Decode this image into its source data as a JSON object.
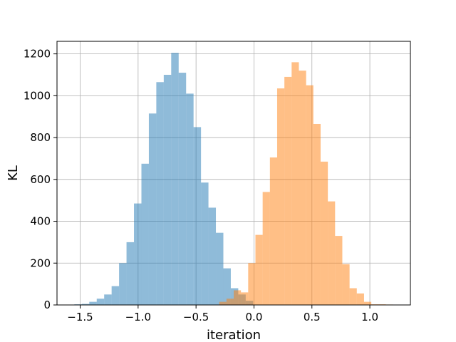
{
  "chart_data": {
    "type": "bar",
    "subtype": "overlapping-histogram",
    "title": "",
    "xlabel": "iteration",
    "ylabel": "KL",
    "xlim": [
      -1.7,
      1.35
    ],
    "ylim": [
      0,
      1260
    ],
    "xticks": [
      -1.5,
      -1.0,
      -0.5,
      0.0,
      0.5,
      1.0
    ],
    "xtick_labels": [
      "−1.5",
      "−1.0",
      "−0.5",
      "0.0",
      "0.5",
      "1.0"
    ],
    "yticks": [
      0,
      200,
      400,
      600,
      800,
      1000,
      1200
    ],
    "ytick_labels": [
      "0",
      "200",
      "400",
      "600",
      "800",
      "1000",
      "1200"
    ],
    "grid": true,
    "legend": "none",
    "series": [
      {
        "color": "#1f77b4",
        "opacity": 0.5,
        "bin_edges": [
          -1.55,
          -1.4857,
          -1.4214,
          -1.3571,
          -1.2929,
          -1.2286,
          -1.1643,
          -1.1,
          -1.0357,
          -0.9714,
          -0.9071,
          -0.8429,
          -0.7786,
          -0.7143,
          -0.65,
          -0.5857,
          -0.5214,
          -0.4571,
          -0.3929,
          -0.3286,
          -0.2643,
          -0.2,
          -0.1357,
          -0.0714,
          -0.0071
        ],
        "counts": [
          3,
          5,
          15,
          30,
          50,
          90,
          200,
          300,
          485,
          675,
          915,
          1065,
          1100,
          1205,
          1110,
          1010,
          850,
          585,
          465,
          345,
          175,
          80,
          50,
          20
        ]
      },
      {
        "color": "#ff7f0e",
        "opacity": 0.5,
        "bin_edges": [
          -0.3,
          -0.2375,
          -0.175,
          -0.1125,
          -0.05,
          0.0125,
          0.075,
          0.1375,
          0.2,
          0.2625,
          0.325,
          0.3875,
          0.45,
          0.5125,
          0.575,
          0.6375,
          0.7,
          0.7625,
          0.825,
          0.8875,
          0.95,
          1.0125,
          1.075,
          1.1375,
          1.2
        ],
        "counts": [
          15,
          30,
          70,
          60,
          200,
          335,
          540,
          705,
          1035,
          1090,
          1160,
          1120,
          1050,
          865,
          685,
          495,
          330,
          195,
          80,
          55,
          15,
          3,
          3,
          2
        ]
      }
    ]
  }
}
